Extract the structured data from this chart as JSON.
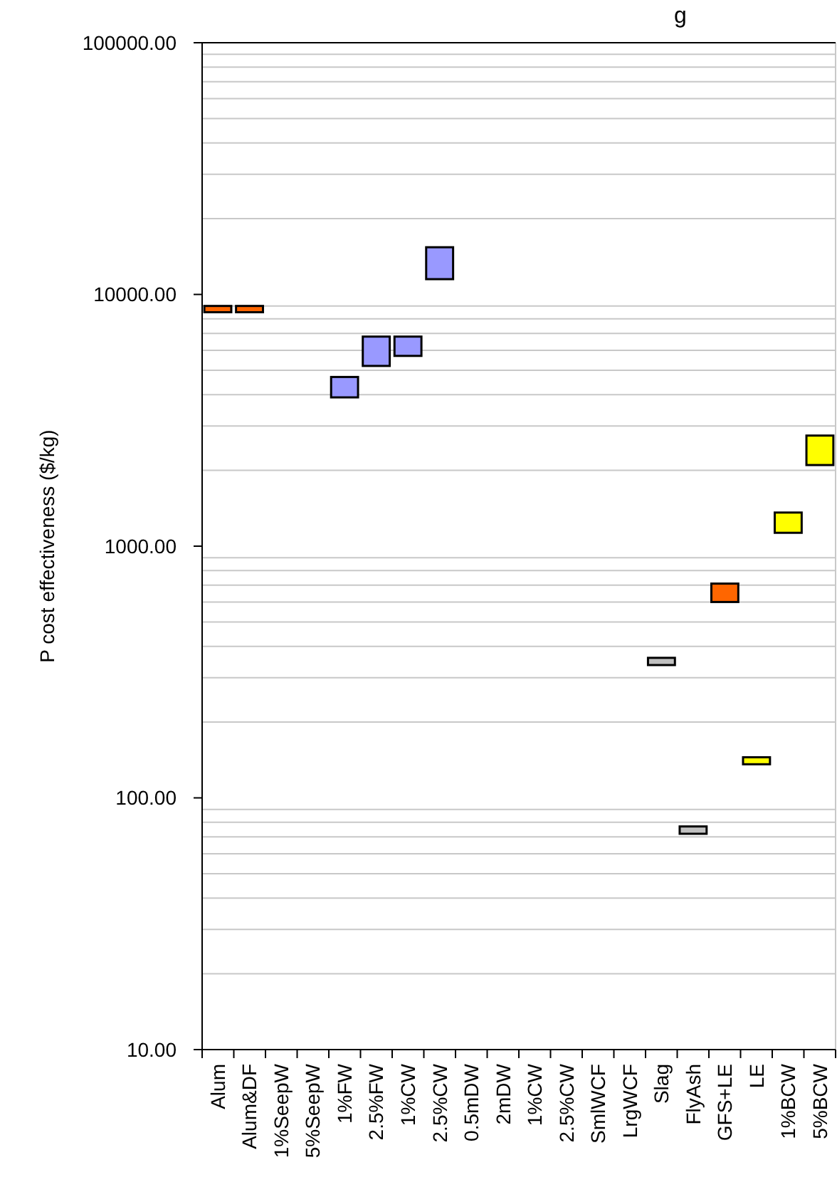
{
  "chart_data": {
    "type": "bar",
    "title": "g",
    "ylabel": "P cost effectiveness ($/kg)",
    "categories": [
      "Alum",
      "Alum&DF",
      "1%SeepW",
      "5%SeepW",
      "1%FW",
      "2.5%FW",
      "1%CW",
      "2.5%CW",
      "0.5mDW",
      "2mDW",
      "1%CW",
      "2.5%CW",
      "SmlWCF",
      "LrgWCF",
      "Slag",
      "FlyAsh",
      "GFS+LE",
      "LE",
      "1%BCW",
      "5%BCW"
    ],
    "base": [
      8500,
      8500,
      null,
      null,
      3900,
      5200,
      5700,
      11500,
      null,
      null,
      null,
      null,
      null,
      null,
      337,
      72,
      600,
      136,
      1130,
      2100
    ],
    "values": [
      500,
      500,
      null,
      null,
      800,
      1600,
      1100,
      3900,
      null,
      null,
      null,
      null,
      null,
      null,
      23,
      5,
      110,
      9,
      230,
      650
    ],
    "colors": [
      "#ff6600",
      "#ff6600",
      null,
      null,
      "#9999ff",
      "#9999ff",
      "#9999ff",
      "#9999ff",
      null,
      null,
      null,
      null,
      null,
      null,
      "#c0c0c0",
      "#c0c0c0",
      "#ff6600",
      "#ffff00",
      "#ffff00",
      "#ffff00"
    ],
    "log": true,
    "ylim": [
      10,
      100000
    ],
    "yticks": [
      {
        "value": 10,
        "label": "10.00"
      },
      {
        "value": 100,
        "label": "100.00"
      },
      {
        "value": 1000,
        "label": "1000.00"
      },
      {
        "value": 10000,
        "label": "10000.00"
      },
      {
        "value": 100000,
        "label": "100000.00"
      }
    ],
    "grid": "y"
  }
}
